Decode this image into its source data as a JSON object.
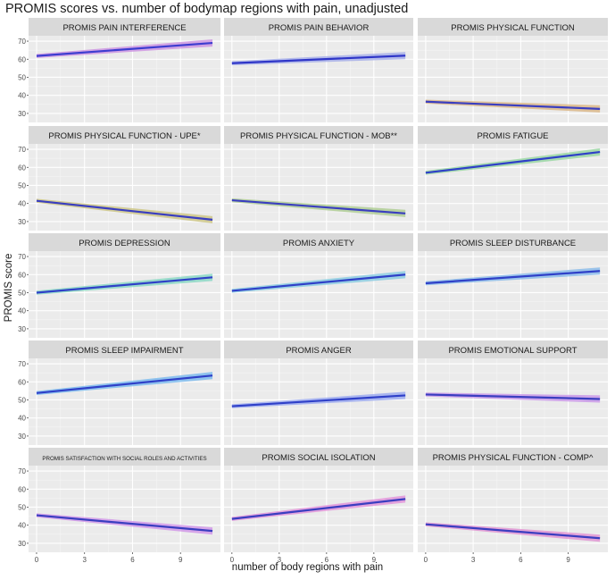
{
  "title": "PROMIS scores vs. number of bodymap regions with pain, unadjusted",
  "colors": {
    "panel_bg": "#ebebeb",
    "strip_bg": "#d9d9d9",
    "grid_major": "#ffffff",
    "grid_minor": "#f5f5f5"
  },
  "chart_data": {
    "type": "line",
    "title": "PROMIS scores vs. number of bodymap regions with pain, unadjusted",
    "xlabel": "number of body regions with pain",
    "ylabel": "PROMIS score",
    "xlim": [
      -0.5,
      11.5
    ],
    "ylim": [
      25,
      73
    ],
    "xticks": [
      0,
      3,
      6,
      9
    ],
    "yticks": [
      30,
      40,
      50,
      60,
      70
    ],
    "facet_layout": "5 rows x 3 columns",
    "panels": [
      {
        "label": "PROMIS PAIN INTERFERENCE",
        "x": [
          0,
          11
        ],
        "y": [
          61.8,
          69.0
        ],
        "band_color": "#c98be0",
        "line_color": "#3d3dd0"
      },
      {
        "label": "PROMIS PAIN BEHAVIOR",
        "x": [
          0,
          11
        ],
        "y": [
          57.8,
          62.0
        ],
        "band_color": "#9fa8e8",
        "line_color": "#2f36c8"
      },
      {
        "label": "PROMIS PHYSICAL FUNCTION",
        "x": [
          0,
          11
        ],
        "y": [
          36.5,
          32.5
        ],
        "band_color": "#d9b27c",
        "line_color": "#3a3ec0"
      },
      {
        "label": "PROMIS PHYSICAL FUNCTION - UPE*",
        "x": [
          0,
          11
        ],
        "y": [
          41.5,
          31.0
        ],
        "band_color": "#c9c27a",
        "line_color": "#3a3ec0"
      },
      {
        "label": "PROMIS PHYSICAL FUNCTION - MOB**",
        "x": [
          0,
          11
        ],
        "y": [
          41.8,
          34.5
        ],
        "band_color": "#a8c98a",
        "line_color": "#3a3ec0"
      },
      {
        "label": "PROMIS FATIGUE",
        "x": [
          0,
          11
        ],
        "y": [
          57.0,
          68.5
        ],
        "band_color": "#8fd49a",
        "line_color": "#2f40c8"
      },
      {
        "label": "PROMIS DEPRESSION",
        "x": [
          0,
          11
        ],
        "y": [
          50.0,
          58.5
        ],
        "band_color": "#7fd6c0",
        "line_color": "#2f40c8"
      },
      {
        "label": "PROMIS ANXIETY",
        "x": [
          0,
          11
        ],
        "y": [
          51.0,
          60.0
        ],
        "band_color": "#7fc8e0",
        "line_color": "#2f40c8"
      },
      {
        "label": "PROMIS SLEEP DISTURBANCE",
        "x": [
          0,
          11
        ],
        "y": [
          55.2,
          62.0
        ],
        "band_color": "#7fb6ea",
        "line_color": "#2f40c8"
      },
      {
        "label": "PROMIS SLEEP IMPAIRMENT",
        "x": [
          0,
          11
        ],
        "y": [
          53.8,
          63.5
        ],
        "band_color": "#6fb4ee",
        "line_color": "#2f40c8"
      },
      {
        "label": "PROMIS ANGER",
        "x": [
          0,
          11
        ],
        "y": [
          46.5,
          52.5
        ],
        "band_color": "#93a3f0",
        "line_color": "#2f40c8"
      },
      {
        "label": "PROMIS EMOTIONAL SUPPORT",
        "x": [
          0,
          11
        ],
        "y": [
          53.0,
          50.5
        ],
        "band_color": "#c58fe8",
        "line_color": "#3a3ec0"
      },
      {
        "label": "PROMIS SATISFACTION WITH SOCIAL ROLES AND ACTIVITIES",
        "x": [
          0,
          11
        ],
        "y": [
          45.5,
          36.8
        ],
        "band_color": "#cf8de8",
        "line_color": "#3a3ec0"
      },
      {
        "label": "PROMIS SOCIAL ISOLATION",
        "x": [
          0,
          11
        ],
        "y": [
          43.5,
          54.5
        ],
        "band_color": "#e08ad8",
        "line_color": "#3a3ec0"
      },
      {
        "label": "PROMIS PHYSICAL FUNCTION - COMP^",
        "x": [
          0,
          11
        ],
        "y": [
          40.5,
          32.8
        ],
        "band_color": "#e08ad0",
        "line_color": "#3a3ec0"
      }
    ]
  }
}
